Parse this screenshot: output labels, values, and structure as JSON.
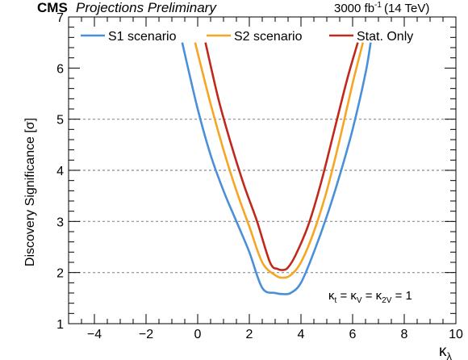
{
  "header": {
    "experiment": "CMS",
    "status": "Projections Preliminary",
    "lumi_value": "3000 fb",
    "lumi_exponent": "-1",
    "lumi_energy": "(14 TeV)"
  },
  "annotation": {
    "kt": "κ",
    "kt_sub": "t",
    "eq1": " = κ",
    "kv_sub": "V",
    "eq2": " = κ",
    "k2v_sub": "2V",
    "eq3": " = 1"
  },
  "axis_labels": {
    "x_main": "κ",
    "x_sub": "λ",
    "y": "Discovery Significance [σ]"
  },
  "chart_data": {
    "type": "line",
    "title": "",
    "xlabel": "κλ",
    "ylabel": "Discovery Significance [σ]",
    "xlim": [
      -5,
      10
    ],
    "ylim": [
      1,
      7
    ],
    "x_ticks": [
      -4,
      -2,
      0,
      2,
      4,
      6,
      8,
      10
    ],
    "y_ticks": [
      1,
      2,
      3,
      4,
      5,
      6,
      7
    ],
    "grid": "dashed horizontal lines at y = 2, 3, 4, 5",
    "reference_lines": [
      2,
      3,
      4,
      5
    ],
    "legend_position": "top",
    "series": [
      {
        "name": "S1 scenario",
        "color": "#4a90d9",
        "x": [
          -0.6,
          0.0,
          0.5,
          1.0,
          1.5,
          2.0,
          2.5,
          3.0,
          3.3,
          3.6,
          4.0,
          4.5,
          5.0,
          5.5,
          6.0,
          6.5,
          6.7
        ],
        "y": [
          6.5,
          5.2,
          4.3,
          3.6,
          3.0,
          2.4,
          1.7,
          1.6,
          1.58,
          1.6,
          1.8,
          2.4,
          3.1,
          3.9,
          4.8,
          5.9,
          6.5
        ]
      },
      {
        "name": "S2 scenario",
        "color": "#f5a623",
        "x": [
          -0.1,
          0.5,
          1.0,
          1.5,
          2.0,
          2.5,
          3.0,
          3.3,
          3.6,
          4.0,
          4.5,
          5.0,
          5.5,
          6.0,
          6.4
        ],
        "y": [
          6.5,
          5.3,
          4.4,
          3.6,
          2.9,
          2.2,
          1.95,
          1.9,
          1.95,
          2.2,
          2.8,
          3.6,
          4.6,
          5.7,
          6.5
        ]
      },
      {
        "name": "Stat. Only",
        "color": "#c0281c",
        "x": [
          0.3,
          0.8,
          1.3,
          1.8,
          2.3,
          2.8,
          3.1,
          3.3,
          3.5,
          3.8,
          4.3,
          4.8,
          5.3,
          5.8,
          6.2
        ],
        "y": [
          6.5,
          5.4,
          4.5,
          3.7,
          3.0,
          2.2,
          2.07,
          2.05,
          2.1,
          2.35,
          2.95,
          3.8,
          4.8,
          5.8,
          6.5
        ]
      }
    ]
  }
}
